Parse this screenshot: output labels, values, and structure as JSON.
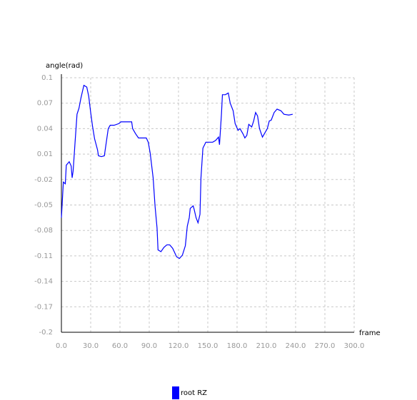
{
  "chart_data": {
    "type": "line",
    "y_label": "angle(rad)",
    "x_label": "frame",
    "x": [
      0,
      2,
      4,
      5,
      8,
      10,
      11,
      12,
      14,
      16,
      18,
      20,
      23,
      26,
      28,
      30,
      32,
      34,
      37,
      38,
      41,
      44,
      46,
      48,
      50,
      54,
      59,
      61,
      69,
      72,
      73,
      76,
      79,
      83,
      87,
      89,
      91,
      94,
      96,
      98,
      99,
      102,
      105,
      108,
      111,
      114,
      116,
      118,
      121,
      124,
      127,
      129,
      131,
      132,
      135,
      136,
      138,
      140,
      142,
      143,
      145,
      148,
      151,
      155,
      158,
      161,
      162,
      164,
      165,
      168,
      171,
      173,
      176,
      178,
      181,
      183,
      186,
      188,
      190,
      192,
      195,
      197,
      199,
      201,
      203,
      206,
      208,
      211,
      213,
      215,
      218,
      221,
      225,
      228,
      233,
      237
    ],
    "series": [
      {
        "name": "root RZ",
        "color": "#0000ff",
        "values": [
          -0.065,
          -0.023,
          -0.025,
          -0.003,
          0.001,
          -0.004,
          -0.018,
          -0.01,
          0.024,
          0.057,
          0.064,
          0.076,
          0.091,
          0.089,
          0.078,
          0.059,
          0.042,
          0.028,
          0.015,
          0.008,
          0.007,
          0.008,
          0.024,
          0.04,
          0.044,
          0.044,
          0.046,
          0.048,
          0.048,
          0.048,
          0.04,
          0.034,
          0.029,
          0.029,
          0.029,
          0.024,
          0.011,
          -0.018,
          -0.052,
          -0.077,
          -0.103,
          -0.105,
          -0.1,
          -0.097,
          -0.097,
          -0.101,
          -0.106,
          -0.111,
          -0.113,
          -0.109,
          -0.098,
          -0.075,
          -0.065,
          -0.054,
          -0.051,
          -0.055,
          -0.065,
          -0.071,
          -0.061,
          -0.018,
          0.017,
          0.024,
          0.024,
          0.024,
          0.026,
          0.03,
          0.021,
          0.057,
          0.08,
          0.08,
          0.082,
          0.07,
          0.061,
          0.046,
          0.038,
          0.04,
          0.034,
          0.029,
          0.032,
          0.045,
          0.042,
          0.049,
          0.059,
          0.055,
          0.04,
          0.03,
          0.034,
          0.04,
          0.049,
          0.05,
          0.059,
          0.063,
          0.061,
          0.057,
          0.056,
          0.057
        ]
      }
    ],
    "xlim": [
      0,
      300
    ],
    "xticks": [
      {
        "value": 0,
        "label": "0.0"
      },
      {
        "value": 30,
        "label": "30.0"
      },
      {
        "value": 60,
        "label": "60.0"
      },
      {
        "value": 90,
        "label": "90.0"
      },
      {
        "value": 120,
        "label": "120.0"
      },
      {
        "value": 150,
        "label": "150.0"
      },
      {
        "value": 180,
        "label": "180.0"
      },
      {
        "value": 210,
        "label": "210.0"
      },
      {
        "value": 240,
        "label": "240.0"
      },
      {
        "value": 270,
        "label": "270.0"
      },
      {
        "value": 300,
        "label": "300.0"
      }
    ],
    "ylim": [
      -0.2,
      0.1
    ],
    "yticks": [
      0.1,
      0.07,
      0.04,
      0.01,
      -0.02,
      -0.05,
      -0.08,
      -0.11,
      -0.14,
      -0.17,
      -0.2
    ],
    "grid": true
  }
}
